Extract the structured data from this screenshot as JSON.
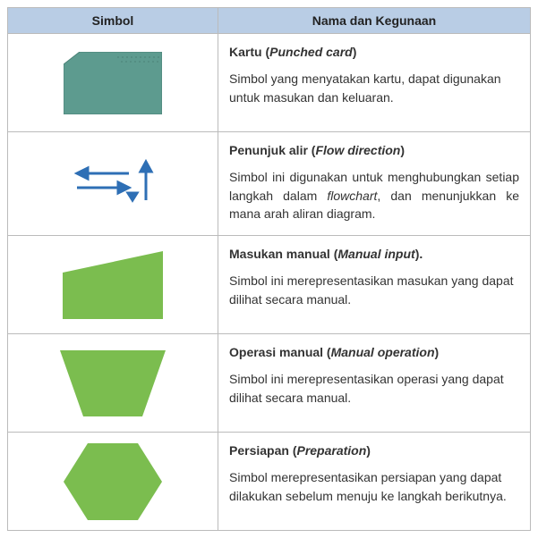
{
  "header": {
    "col1": "Simbol",
    "col2": "Nama dan Kegunaan"
  },
  "colors": {
    "header_bg": "#b9cde5",
    "border": "#bbbbbb",
    "card_fill": "#5d9b8f",
    "card_stroke": "#4a8277",
    "green_fill": "#7bbd4f",
    "arrow_blue": "#2e6fb5",
    "text": "#333333"
  },
  "rows": [
    {
      "symbol": "punched-card",
      "title_pre": "Kartu (",
      "title_en": "Punched card",
      "title_post": ")",
      "desc_parts": [
        {
          "t": "Simbol yang menyatakan kartu, dapat digunakan untuk masukan dan keluaran."
        }
      ],
      "justify": false
    },
    {
      "symbol": "flow-direction",
      "title_pre": "Penunjuk alir (",
      "title_en": "Flow direction",
      "title_post": ")",
      "desc_parts": [
        {
          "t": "Simbol ini digunakan untuk menghubungkan setiap langkah dalam "
        },
        {
          "t": "flowchart",
          "italic": true
        },
        {
          "t": ", dan menunjukkan ke mana arah aliran diagram."
        }
      ],
      "justify": true
    },
    {
      "symbol": "manual-input",
      "title_pre": "Masukan manual (",
      "title_en": "Manual input",
      "title_post": ").",
      "desc_parts": [
        {
          "t": "Simbol ini merepresentasikan masukan yang dapat dilihat secara manual."
        }
      ],
      "justify": false
    },
    {
      "symbol": "manual-operation",
      "title_pre": "Operasi manual (",
      "title_en": "Manual operation",
      "title_post": ")",
      "desc_parts": [
        {
          "t": "Simbol ini merepresentasikan operasi yang dapat dilihat secara manual."
        }
      ],
      "justify": false
    },
    {
      "symbol": "preparation",
      "title_pre": "Persiapan (",
      "title_en": "Preparation",
      "title_post": ")",
      "desc_parts": [
        {
          "t": "Simbol merepresentasikan persiapan yang dapat dilakukan sebelum menuju ke langkah berikutnya."
        }
      ],
      "justify": false
    }
  ]
}
